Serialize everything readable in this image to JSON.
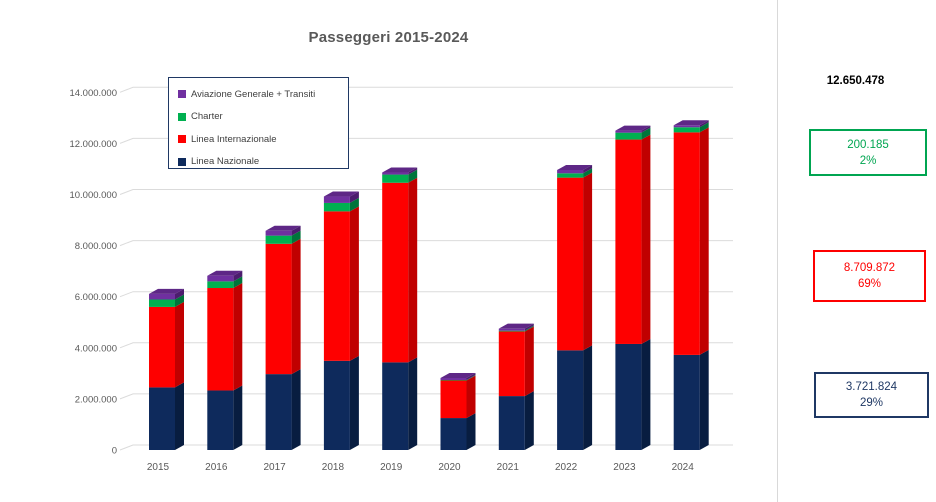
{
  "title": "Passeggeri 2015-2024",
  "chart_data": {
    "type": "bar",
    "stacked": true,
    "style": "3d-column",
    "title": "Passeggeri 2015-2024",
    "categories": [
      "2015",
      "2016",
      "2017",
      "2018",
      "2019",
      "2020",
      "2021",
      "2022",
      "2023",
      "2024"
    ],
    "series": [
      {
        "name": "Linea Nazionale",
        "color": "#0E2A5C",
        "side_color": "#081D40",
        "values": [
          2450000,
          2330000,
          2970000,
          3490000,
          3430000,
          1250000,
          2110000,
          3900000,
          4150000,
          3721824
        ]
      },
      {
        "name": "Linea Internazionale",
        "color": "#FE0000",
        "side_color": "#C00000",
        "values": [
          3150000,
          4010000,
          5100000,
          5850000,
          7030000,
          1470000,
          2530000,
          6760000,
          8000000,
          8709872
        ]
      },
      {
        "name": "Charter",
        "color": "#00B050",
        "side_color": "#00753B",
        "values": [
          290000,
          260000,
          320000,
          330000,
          320000,
          20000,
          30000,
          170000,
          270000,
          200185
        ]
      },
      {
        "name": "Aviazione Generale + Transiti",
        "color": "#7030A0",
        "side_color": "#4C1D6E",
        "values": [
          220000,
          220000,
          190000,
          250000,
          80000,
          35000,
          70000,
          130000,
          80000,
          18597
        ]
      }
    ],
    "totals": [
      6110000,
      6820000,
      8580000,
      9920000,
      10860000,
      2775000,
      4740000,
      10960000,
      12500000,
      12650478
    ],
    "top_face_color": "#5E2786",
    "ylim": [
      0,
      14000000
    ],
    "ytick_step": 2000000,
    "ytick_labels": [
      "0",
      "2.000.000",
      "4.000.000",
      "6.000.000",
      "8.000.000",
      "10.000.000",
      "12.000.000",
      "14.000.000"
    ],
    "grid": true,
    "gridline_color": "#DBDBDB",
    "axis_text_color": "#595959",
    "legend_position": "top-left"
  },
  "legend": {
    "items": [
      {
        "label": "Aviazione Generale + Transiti",
        "color": "#7030A0"
      },
      {
        "label": "Charter",
        "color": "#00B050"
      },
      {
        "label": "Linea Internazionale",
        "color": "#FE0000"
      },
      {
        "label": "Linea Nazionale",
        "color": "#0E2A5C"
      }
    ]
  },
  "summary": {
    "total": {
      "value": "12.650.478",
      "color": "#000000"
    },
    "charter": {
      "value": "200.185",
      "percent": "2%",
      "color": "#00A551"
    },
    "internazionale": {
      "value": "8.709.872",
      "percent": "69%",
      "color": "#FE0000"
    },
    "nazionale": {
      "value": "3.721.824",
      "percent": "29%",
      "color": "#1F3864"
    }
  }
}
